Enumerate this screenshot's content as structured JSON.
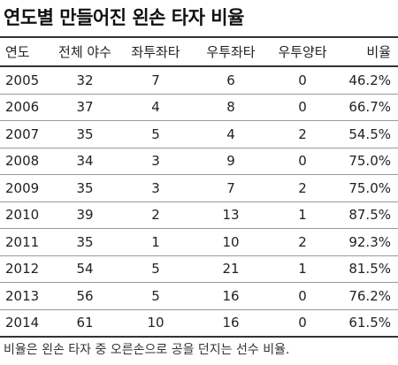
{
  "header": {
    "title": "연도별 만들어진 왼손 타자 비율"
  },
  "table": {
    "columns": [
      "연도",
      "전체 야수",
      "좌투좌타",
      "우투좌타",
      "우투양타",
      "비율"
    ],
    "rows": [
      [
        "2005",
        "32",
        "7",
        "6",
        "0",
        "46.2%"
      ],
      [
        "2006",
        "37",
        "4",
        "8",
        "0",
        "66.7%"
      ],
      [
        "2007",
        "35",
        "5",
        "4",
        "2",
        "54.5%"
      ],
      [
        "2008",
        "34",
        "3",
        "9",
        "0",
        "75.0%"
      ],
      [
        "2009",
        "35",
        "3",
        "7",
        "2",
        "75.0%"
      ],
      [
        "2010",
        "39",
        "2",
        "13",
        "1",
        "87.5%"
      ],
      [
        "2011",
        "35",
        "1",
        "10",
        "2",
        "92.3%"
      ],
      [
        "2012",
        "54",
        "5",
        "21",
        "1",
        "81.5%"
      ],
      [
        "2013",
        "56",
        "5",
        "16",
        "0",
        "76.2%"
      ],
      [
        "2014",
        "61",
        "10",
        "16",
        "0",
        "61.5%"
      ]
    ]
  },
  "footnote": "비율은 왼손 타자 중 오른손으로 공을 던지는 선수 비율."
}
